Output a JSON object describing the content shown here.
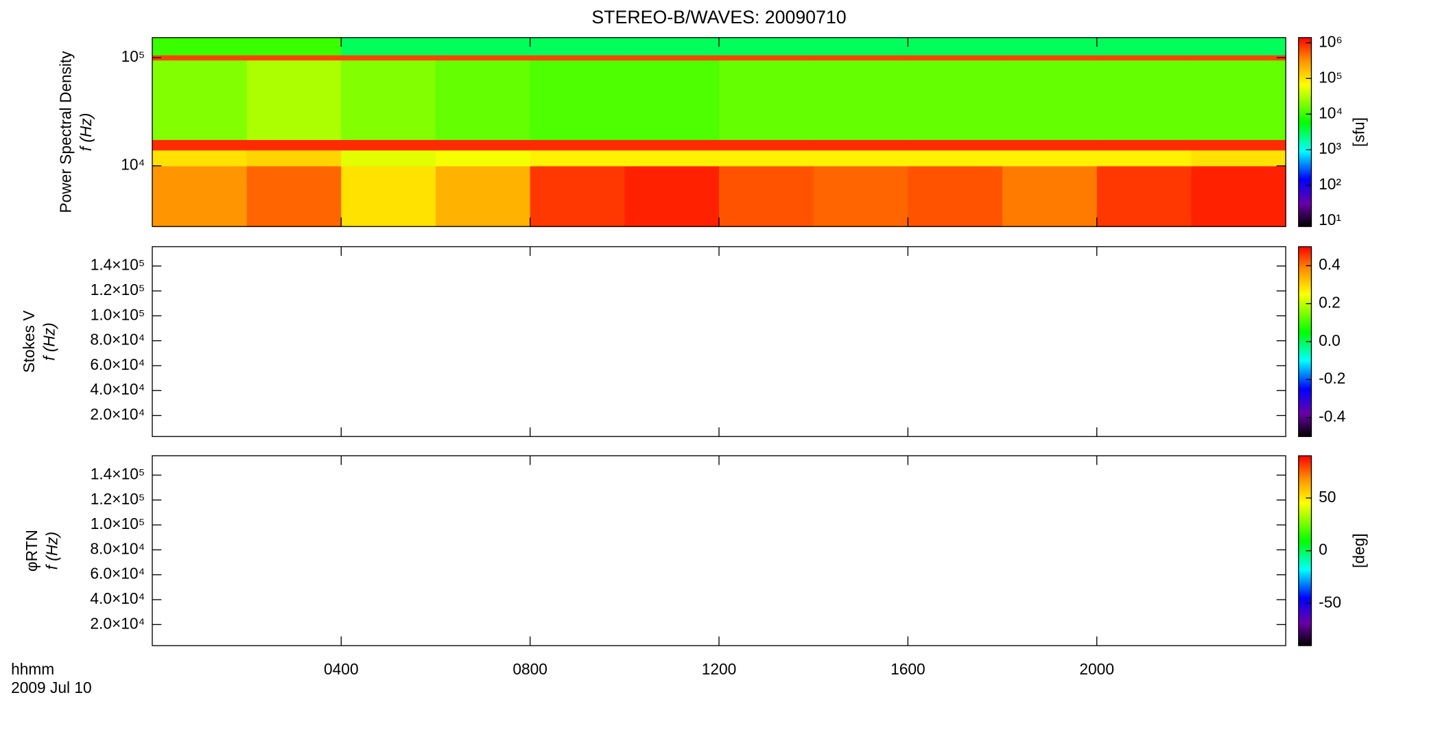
{
  "title": "STEREO-B/WAVES: 20090710",
  "chart_data": [
    {
      "type": "heatmap",
      "ylabel": [
        "Power Spectral Density",
        "f (Hz)"
      ],
      "ylog": true,
      "ylim": [
        2750,
        153000
      ],
      "yticks": [
        {
          "value": 10000,
          "label": "10⁴"
        },
        {
          "value": 100000,
          "label": "10⁵"
        }
      ],
      "x_edges": [
        0,
        2,
        4,
        6,
        8,
        10,
        12,
        14,
        16,
        18,
        20,
        22,
        24
      ],
      "y_edges": [
        2750,
        10000,
        14000,
        17500,
        95000,
        106000,
        153000
      ],
      "z": [
        [
          300000,
          500000,
          100000,
          200000,
          800000,
          1000000,
          600000,
          500000,
          600000,
          400000,
          800000,
          1000000
        ],
        [
          100000,
          120000,
          50000,
          60000,
          80000,
          80000,
          80000,
          80000,
          80000,
          80000,
          80000,
          100000
        ],
        [
          900000,
          900000,
          900000,
          900000,
          900000,
          900000,
          900000,
          900000,
          900000,
          900000,
          900000,
          900000
        ],
        [
          20000,
          30000,
          20000,
          15000,
          12000,
          12000,
          15000,
          15000,
          15000,
          15000,
          15000,
          15000
        ],
        [
          700000,
          700000,
          700000,
          700000,
          700000,
          700000,
          700000,
          700000,
          700000,
          700000,
          700000,
          700000
        ],
        [
          10000,
          10000,
          3000,
          3000,
          3000,
          3000,
          3000,
          3000,
          3000,
          3000,
          3000,
          3000
        ]
      ],
      "colorbar": {
        "log": true,
        "lim": [
          7,
          1400000
        ],
        "label": "[sfu]",
        "ticks": [
          {
            "value": 10,
            "label": "10¹"
          },
          {
            "value": 100,
            "label": "10²"
          },
          {
            "value": 1000,
            "label": "10³"
          },
          {
            "value": 10000,
            "label": "10⁴"
          },
          {
            "value": 100000,
            "label": "10⁵"
          },
          {
            "value": 1000000,
            "label": "10⁶"
          }
        ]
      }
    },
    {
      "type": "heatmap",
      "ylabel": [
        "Stokes V",
        "f (Hz)"
      ],
      "ylog": false,
      "ylim": [
        3100,
        155500
      ],
      "yticks": [
        {
          "value": 20000,
          "label": "2.0×10⁴"
        },
        {
          "value": 40000,
          "label": "4.0×10⁴"
        },
        {
          "value": 60000,
          "label": "6.0×10⁴"
        },
        {
          "value": 80000,
          "label": "8.0×10⁴"
        },
        {
          "value": 100000,
          "label": "1.0×10⁵"
        },
        {
          "value": 120000,
          "label": "1.2×10⁵"
        },
        {
          "value": 140000,
          "label": "1.4×10⁵"
        }
      ],
      "colorbar": {
        "log": false,
        "lim": [
          -0.5,
          0.5
        ],
        "ticks": [
          -0.4,
          -0.2,
          {
            "value": 0,
            "label": "0.0"
          },
          0.2,
          0.4
        ]
      }
    },
    {
      "type": "heatmap",
      "ylabel": [
        "φRTN",
        "f (Hz)"
      ],
      "ylog": false,
      "ylim": [
        3100,
        155500
      ],
      "yticks": [
        {
          "value": 20000,
          "label": "2.0×10⁴"
        },
        {
          "value": 40000,
          "label": "4.0×10⁴"
        },
        {
          "value": 60000,
          "label": "6.0×10⁴"
        },
        {
          "value": 80000,
          "label": "8.0×10⁴"
        },
        {
          "value": 100000,
          "label": "1.0×10⁵"
        },
        {
          "value": 120000,
          "label": "1.2×10⁵"
        },
        {
          "value": 140000,
          "label": "1.4×10⁵"
        }
      ],
      "colorbar": {
        "log": false,
        "lim": [
          -90,
          90
        ],
        "label": "[deg]",
        "ticks": [
          -50,
          0,
          50
        ]
      },
      "xlim": [
        0,
        24
      ],
      "xticks": [
        {
          "value": 4,
          "label": "0400"
        },
        {
          "value": 8,
          "label": "0800"
        },
        {
          "value": 12,
          "label": "1200"
        },
        {
          "value": 16,
          "label": "1600"
        },
        {
          "value": 20,
          "label": "2000"
        }
      ],
      "xlabel": [
        "hhmm",
        "2009 Jul 10"
      ]
    }
  ]
}
